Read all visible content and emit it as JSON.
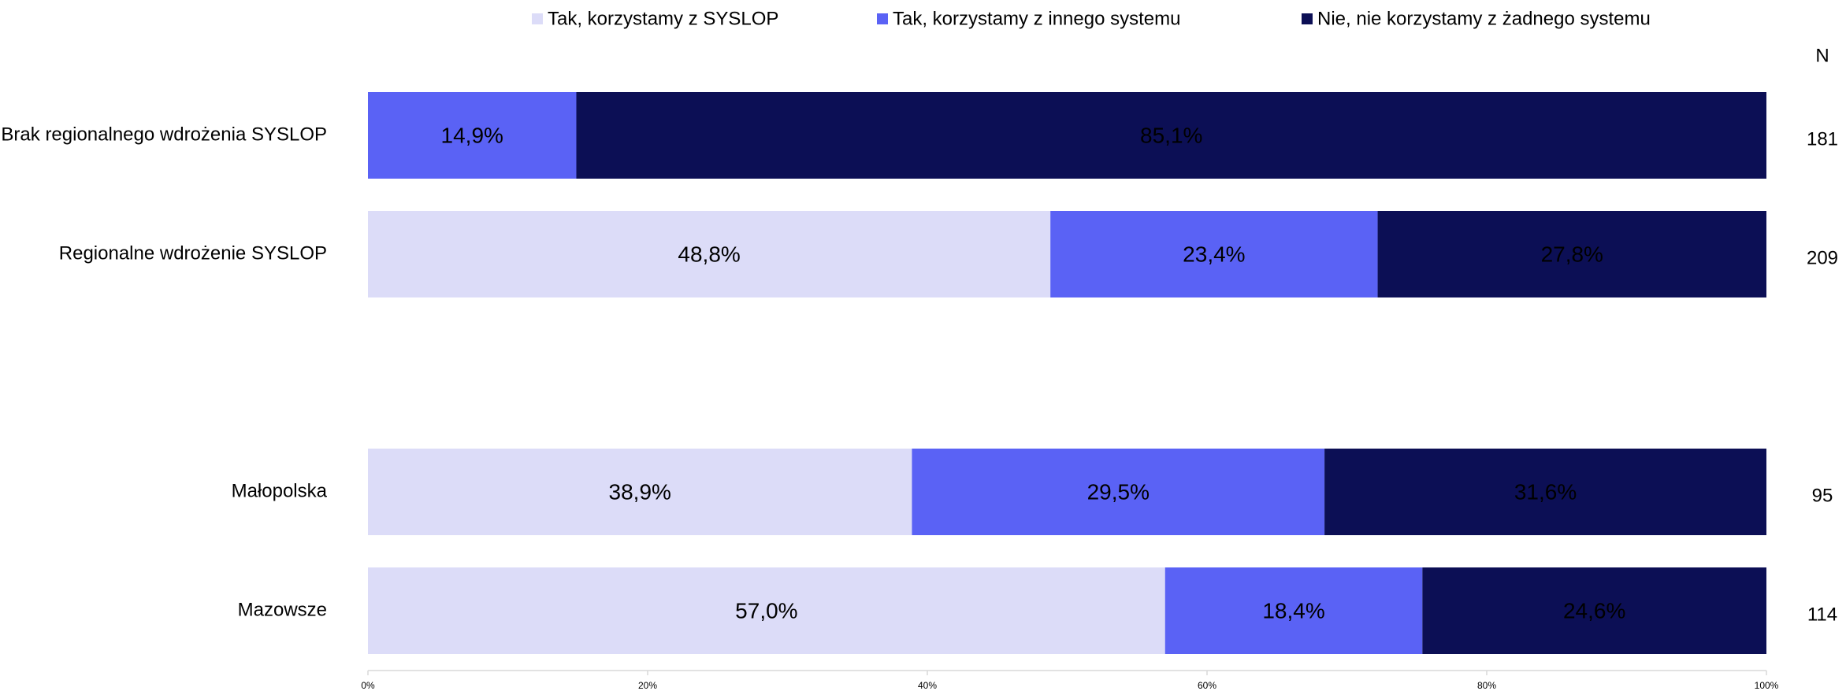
{
  "chart_data": {
    "type": "stacked_barh",
    "categories": [
      "Brak regionalnego wdrożenia SYSLOP",
      "Regionalne wdrożenie SYSLOP",
      null,
      "Małopolska",
      "Mazowsze"
    ],
    "series": [
      {
        "name": "Tak, korzystamy z SYSLOP",
        "color": "#dcdcf8",
        "label_color": "#000000",
        "values": [
          0,
          48.8,
          null,
          38.9,
          57.0
        ],
        "value_labels": [
          null,
          "48,8%",
          null,
          "38,9%",
          "57,0%"
        ]
      },
      {
        "name": "Tak, korzystamy z innego systemu",
        "color": "#5a62f5",
        "label_color": "#ffffff",
        "values": [
          14.9,
          23.4,
          null,
          29.5,
          18.4
        ],
        "value_labels": [
          "14,9%",
          "23,4%",
          null,
          "29,5%",
          "18,4%"
        ]
      },
      {
        "name": "Nie, nie korzystamy z żadnego systemu",
        "color": "#0c0f55",
        "label_color": "#ffffff",
        "values": [
          85.1,
          27.8,
          null,
          31.6,
          24.6
        ],
        "value_labels": [
          "85,1%",
          "27,8%",
          null,
          "31,6%",
          "24,6%"
        ]
      }
    ],
    "n_header": "N",
    "n_values": [
      181,
      209,
      null,
      95,
      114
    ],
    "xlim": [
      0,
      100
    ],
    "xticks": [
      {
        "value": 0,
        "label": "0%"
      },
      {
        "value": 20,
        "label": "20%"
      },
      {
        "value": 40,
        "label": "40%"
      },
      {
        "value": 60,
        "label": "60%"
      },
      {
        "value": 80,
        "label": "80%"
      },
      {
        "value": 100,
        "label": "100%"
      }
    ],
    "legend": "top"
  }
}
